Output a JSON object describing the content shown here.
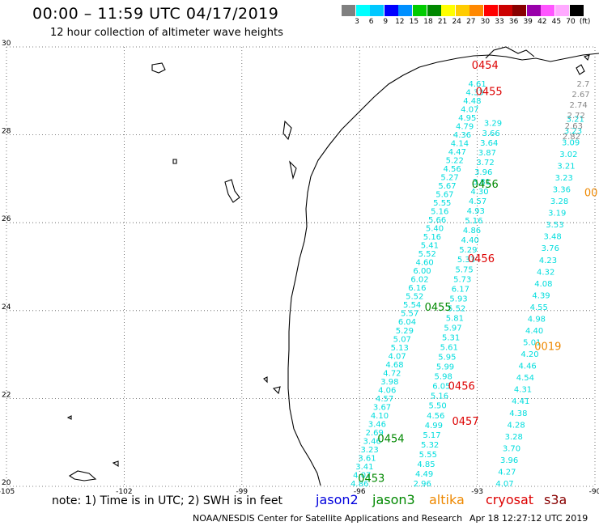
{
  "title": "00:00 – 11:59 UTC 04/17/2019",
  "subtitle": "12 hour collection of altimeter wave heights",
  "scale": {
    "colors": [
      "#808080",
      "#00ffff",
      "#00c8ff",
      "#0000ff",
      "#0090ff",
      "#00cc00",
      "#008800",
      "#ffff00",
      "#ffcc00",
      "#ff8800",
      "#ff0000",
      "#cc0000",
      "#880000",
      "#9900aa",
      "#ff55ff",
      "#ffaaff",
      "#000000"
    ],
    "labels": [
      "3",
      "6",
      "9",
      "12",
      "15",
      "18",
      "21",
      "24",
      "27",
      "30",
      "33",
      "36",
      "39",
      "42",
      "45",
      "70",
      "(ft)"
    ]
  },
  "map": {
    "lon_range": [
      -105,
      -90
    ],
    "lat_range": [
      20,
      30
    ],
    "lon_ticks": [
      {
        "v": -105,
        "label": "-105"
      },
      {
        "v": -102,
        "label": "-102"
      },
      {
        "v": -99,
        "label": "-99"
      },
      {
        "v": -96,
        "label": "-96"
      },
      {
        "v": -93,
        "label": "-93"
      },
      {
        "v": -90,
        "label": "-90"
      }
    ],
    "lat_ticks": [
      {
        "v": 30,
        "label": "30"
      },
      {
        "v": 28,
        "label": "28"
      },
      {
        "v": 26,
        "label": "26"
      },
      {
        "v": 24,
        "label": "24"
      },
      {
        "v": 22,
        "label": "22"
      },
      {
        "v": 20,
        "label": "20"
      }
    ],
    "colors": {
      "jason3": "#00dddd",
      "cryosat": "#888888",
      "green": "#008800",
      "red": "#dd0000",
      "orange": "#ee8800",
      "coast": "#000000",
      "grid": "#555555"
    },
    "tracks": [
      {
        "name": "track-a",
        "color": "#00dddd",
        "start": [
          -96.0,
          20.0
        ],
        "end": [
          -93.0,
          29.1
        ],
        "values": [
          "4.86",
          "4.07",
          "3.41",
          "3.61",
          "3.23",
          "3.46",
          "2.69",
          "3.46",
          "4.10",
          "3.67",
          "4.57",
          "4.06",
          "3.98",
          "4.72",
          "4.68",
          "4.07",
          "5.13",
          "5.07",
          "5.29",
          "6.04",
          "5.57",
          "5.54",
          "5.52",
          "6.16",
          "6.02",
          "6.00",
          "4.60",
          "5.52",
          "5.41",
          "5.16",
          "5.40",
          "5.66",
          "5.16",
          "5.55",
          "5.67",
          "5.67",
          "5.27",
          "4.56",
          "5.22",
          "4.47",
          "4.14",
          "4.36",
          "4.79",
          "4.95",
          "4.07",
          "4.48",
          "4.33",
          "4.61"
        ]
      },
      {
        "name": "track-b",
        "color": "#00dddd",
        "start": [
          -94.4,
          20.0
        ],
        "end": [
          -92.6,
          28.2
        ],
        "values": [
          "2.96",
          "4.49",
          "4.85",
          "5.55",
          "5.32",
          "5.17",
          "4.99",
          "4.56",
          "5.50",
          "5.16",
          "6.05",
          "5.98",
          "5.99",
          "5.95",
          "5.61",
          "5.31",
          "5.97",
          "5.81",
          "5.52",
          "5.93",
          "6.17",
          "5.73",
          "5.75",
          "5.33",
          "5.29",
          "4.40",
          "4.86",
          "5.16",
          "4.93",
          "4.57",
          "4.30",
          "3.81",
          "3.96",
          "3.72",
          "3.87",
          "3.64",
          "3.66",
          "3.29"
        ]
      },
      {
        "name": "track-c",
        "color": "#00dddd",
        "start": [
          -92.3,
          20.0
        ],
        "end": [
          -90.5,
          28.3
        ],
        "values": [
          "4.07",
          "4.27",
          "3.96",
          "3.70",
          "3.28",
          "4.28",
          "4.38",
          "4.41",
          "4.31",
          "4.54",
          "4.46",
          "4.20",
          "5.01",
          "4.40",
          "4.98",
          "4.55",
          "4.39",
          "4.08",
          "4.32",
          "4.23",
          "3.76",
          "3.48",
          "3.53",
          "3.19",
          "3.28",
          "3.36",
          "3.23",
          "3.21",
          "3.02",
          "3.09",
          "3.23",
          "3.21"
        ]
      },
      {
        "name": "track-d",
        "color": "#888888",
        "start": [
          -90.6,
          27.9
        ],
        "end": [
          -90.3,
          29.1
        ],
        "values": [
          "2.82",
          "2.63",
          "2.72",
          "2.74",
          "2.67",
          "2.7"
        ]
      }
    ],
    "pass_labels": [
      {
        "text": "0453",
        "color": "#008800",
        "lon": -95.7,
        "lat": 20.1
      },
      {
        "text": "0454",
        "color": "#008800",
        "lon": -95.2,
        "lat": 21.0
      },
      {
        "text": "0455",
        "color": "#008800",
        "lon": -94.0,
        "lat": 24.0
      },
      {
        "text": "0456",
        "color": "#008800",
        "lon": -92.8,
        "lat": 26.8
      },
      {
        "text": "0454",
        "color": "#dd0000",
        "lon": -92.8,
        "lat": 29.5
      },
      {
        "text": "0455",
        "color": "#dd0000",
        "lon": -92.7,
        "lat": 28.9
      },
      {
        "text": "0456",
        "color": "#dd0000",
        "lon": -92.9,
        "lat": 25.1
      },
      {
        "text": "0456",
        "color": "#dd0000",
        "lon": -93.4,
        "lat": 22.2
      },
      {
        "text": "0457",
        "color": "#dd0000",
        "lon": -93.3,
        "lat": 21.4
      },
      {
        "text": "0019",
        "color": "#ee8800",
        "lon": -91.2,
        "lat": 23.1
      },
      {
        "text": "00",
        "color": "#ee8800",
        "lon": -90.1,
        "lat": 26.6
      }
    ]
  },
  "note": "note: 1) Time is in UTC; 2) SWH is in feet",
  "legend": [
    {
      "label": "jason2",
      "color": "#0000dd"
    },
    {
      "label": "jason3",
      "color": "#008800"
    },
    {
      "label": "altika",
      "color": "#ee8800"
    },
    {
      "label": "cryosat",
      "color": "#dd0000"
    },
    {
      "label": "s3a",
      "color": "#880000"
    }
  ],
  "credit": "NOAA/NESDIS Center for Satellite Applications and Research",
  "timestamp": "Apr 18 12:27:12 UTC 2019"
}
